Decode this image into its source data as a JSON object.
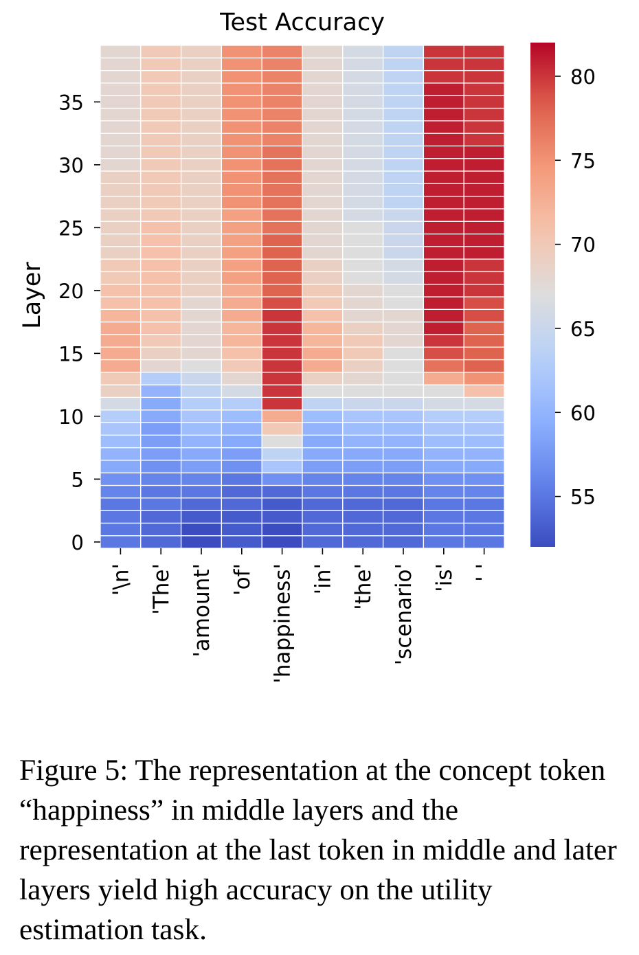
{
  "chart_data": {
    "type": "heatmap",
    "title": "Test Accuracy",
    "xlabel": "",
    "ylabel": "Layer",
    "x_categories": [
      "'\\n'",
      "'The'",
      "'amount'",
      "'of'",
      "'happiness'",
      "'in'",
      "'the'",
      "'scenario'",
      "'is'",
      "' '"
    ],
    "y_ticks": [
      0,
      5,
      10,
      15,
      20,
      25,
      30,
      35
    ],
    "y_range": [
      0,
      39
    ],
    "colormap": "coolwarm",
    "color_range": [
      52,
      82
    ],
    "colorbar_ticks": [
      55,
      60,
      65,
      70,
      75,
      80
    ],
    "grid_color": "#ffffff",
    "values": [
      [
        55,
        54,
        52,
        53,
        52,
        54,
        54,
        54,
        55,
        55
      ],
      [
        55,
        54,
        52,
        53,
        52,
        54,
        54,
        54,
        55,
        55
      ],
      [
        55,
        54,
        53,
        53,
        53,
        54,
        54,
        54,
        55,
        55
      ],
      [
        55,
        55,
        54,
        54,
        53,
        54,
        54,
        54,
        55,
        55
      ],
      [
        56,
        55,
        55,
        54,
        54,
        55,
        55,
        55,
        56,
        56
      ],
      [
        57,
        56,
        56,
        55,
        57,
        56,
        56,
        56,
        57,
        57
      ],
      [
        59,
        57,
        58,
        57,
        62,
        58,
        58,
        58,
        59,
        59
      ],
      [
        60,
        58,
        59,
        58,
        64,
        59,
        59,
        59,
        60,
        60
      ],
      [
        61,
        58,
        60,
        59,
        67,
        59,
        60,
        60,
        61,
        61
      ],
      [
        62,
        58,
        61,
        60,
        70,
        60,
        61,
        61,
        62,
        62
      ],
      [
        63,
        59,
        62,
        61,
        73,
        61,
        62,
        62,
        63,
        63
      ],
      [
        66,
        59,
        63,
        63,
        80,
        64,
        65,
        65,
        66,
        66
      ],
      [
        69,
        60,
        64,
        66,
        80,
        67,
        67,
        67,
        67,
        71
      ],
      [
        70,
        63,
        65,
        68,
        80,
        69,
        68,
        67,
        73,
        75
      ],
      [
        73,
        68,
        67,
        70,
        80,
        73,
        69,
        67,
        77,
        78
      ],
      [
        73,
        69,
        68,
        71,
        80,
        73,
        70,
        67,
        79,
        78
      ],
      [
        73,
        70,
        68,
        72,
        80,
        72,
        70,
        68,
        80,
        78
      ],
      [
        73,
        71,
        68,
        72,
        80,
        72,
        69,
        68,
        81,
        78
      ],
      [
        72,
        71,
        68,
        73,
        80,
        71,
        68,
        68,
        81,
        79
      ],
      [
        71,
        71,
        68,
        73,
        79,
        70,
        68,
        67,
        81,
        79
      ],
      [
        71,
        71,
        69,
        73,
        78,
        70,
        68,
        67,
        81,
        80
      ],
      [
        70,
        71,
        69,
        74,
        78,
        69,
        67,
        66,
        81,
        80
      ],
      [
        70,
        71,
        69,
        74,
        78,
        69,
        67,
        66,
        81,
        80
      ],
      [
        69,
        71,
        69,
        74,
        78,
        68,
        67,
        65,
        81,
        81
      ],
      [
        69,
        71,
        69,
        74,
        78,
        68,
        67,
        65,
        81,
        81
      ],
      [
        69,
        71,
        69,
        74,
        77,
        68,
        67,
        65,
        81,
        81
      ],
      [
        69,
        70,
        69,
        74,
        77,
        68,
        66,
        65,
        81,
        81
      ],
      [
        69,
        70,
        69,
        75,
        77,
        68,
        66,
        64,
        81,
        81
      ],
      [
        69,
        70,
        69,
        75,
        77,
        68,
        66,
        64,
        81,
        81
      ],
      [
        69,
        70,
        69,
        75,
        77,
        68,
        66,
        64,
        81,
        81
      ],
      [
        68,
        70,
        69,
        75,
        77,
        68,
        66,
        64,
        81,
        81
      ],
      [
        68,
        70,
        69,
        75,
        77,
        68,
        66,
        64,
        81,
        81
      ],
      [
        68,
        70,
        69,
        75,
        76,
        68,
        66,
        64,
        81,
        80
      ],
      [
        68,
        70,
        69,
        75,
        76,
        68,
        66,
        64,
        81,
        80
      ],
      [
        68,
        70,
        69,
        75,
        76,
        68,
        66,
        64,
        81,
        80
      ],
      [
        68,
        70,
        69,
        75,
        76,
        68,
        66,
        64,
        81,
        80
      ],
      [
        68,
        70,
        69,
        75,
        76,
        68,
        66,
        64,
        81,
        80
      ],
      [
        68,
        70,
        69,
        75,
        76,
        68,
        66,
        64,
        80,
        80
      ],
      [
        68,
        70,
        69,
        75,
        76,
        68,
        66,
        64,
        80,
        80
      ],
      [
        68,
        70,
        69,
        75,
        76,
        68,
        66,
        64,
        80,
        80
      ]
    ]
  },
  "caption": "Figure 5: The representation at the concept token “happiness” in middle layers and the representation at the last token in middle and later layers yield high accuracy on the utility estimation task."
}
